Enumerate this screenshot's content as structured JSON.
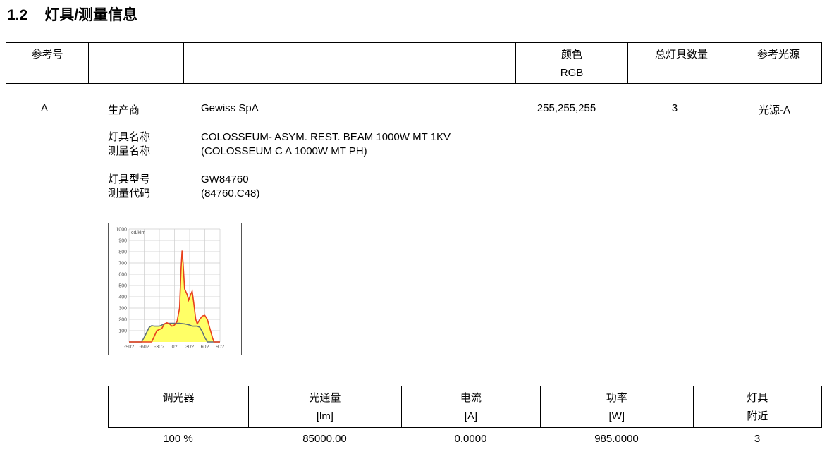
{
  "section": {
    "number": "1.2",
    "title": "灯具/测量信息"
  },
  "header": {
    "ref": "参考号",
    "color": "颜色",
    "color_unit": "RGB",
    "count": "总灯具数量",
    "source": "参考光源"
  },
  "luminaire": {
    "ref": "A",
    "manufacturer_label": "生产商",
    "manufacturer": "Gewiss SpA",
    "rgb": "255,255,255",
    "count": "3",
    "source": "光源-A",
    "name_label": "灯具名称",
    "name": "COLOSSEUM- ASYM. REST. BEAM 1000W MT 1KV",
    "meas_name_label": "测量名称",
    "meas_name": "(COLOSSEUM C A 1000W MT PH)",
    "type_label": "灯具型号",
    "type": "GW84760",
    "meas_code_label": "测量代码",
    "meas_code": "(84760.C48)"
  },
  "chart_data": {
    "type": "line",
    "unit_label": "cd/klm",
    "ylim": [
      0,
      1000
    ],
    "yticks": [
      "1000",
      "900",
      "800",
      "700",
      "600",
      "500",
      "400",
      "300",
      "200",
      "100"
    ],
    "xlim": [
      -90,
      90
    ],
    "xticks": [
      "-90?",
      "-60?",
      "-30?",
      "0?",
      "30?",
      "60?",
      "90?"
    ],
    "grid": true,
    "series": [
      {
        "color": "#e8401c",
        "x": [
          -90,
          -45,
          -40,
          -35,
          -25,
          -20,
          -15,
          -10,
          -5,
          0,
          5,
          10,
          13,
          15,
          17,
          20,
          25,
          28,
          32,
          35,
          38,
          42,
          45,
          50,
          55,
          60,
          65,
          70,
          75,
          78,
          90
        ],
        "y": [
          0,
          0,
          50,
          100,
          120,
          160,
          170,
          160,
          140,
          150,
          180,
          300,
          650,
          810,
          700,
          470,
          420,
          370,
          420,
          450,
          350,
          200,
          160,
          200,
          230,
          235,
          200,
          120,
          40,
          0,
          0
        ]
      },
      {
        "color": "#5f6f7a",
        "x": [
          -90,
          -65,
          -60,
          -50,
          -45,
          -40,
          -30,
          -20,
          -10,
          0,
          10,
          20,
          30,
          35,
          45,
          50,
          55,
          60,
          65,
          90
        ],
        "y": [
          0,
          0,
          40,
          130,
          145,
          140,
          140,
          160,
          165,
          165,
          165,
          160,
          150,
          140,
          140,
          130,
          90,
          40,
          0,
          0
        ]
      }
    ],
    "fill_color": "#ffff66"
  },
  "dimming": {
    "headers": [
      [
        "调光器",
        ""
      ],
      [
        "光通量",
        "[lm]"
      ],
      [
        "电流",
        "[A]"
      ],
      [
        "功率",
        "[W]"
      ],
      [
        "灯具",
        "附近"
      ]
    ],
    "values": [
      "100 %",
      "85000.00",
      "0.0000",
      "985.0000",
      "3"
    ]
  }
}
